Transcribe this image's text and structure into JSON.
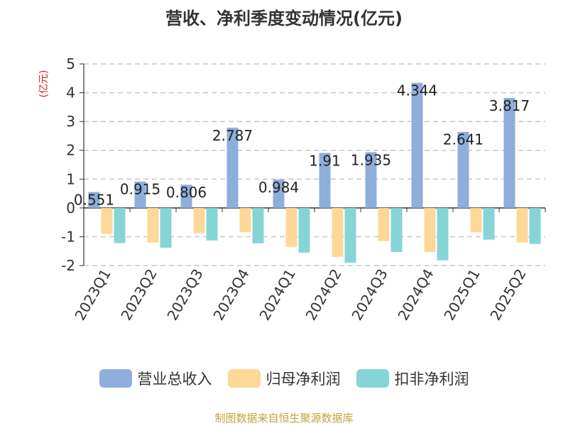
{
  "title": "营收、净利季度变动情况(亿元)",
  "source": "制图数据来自恒生聚源数据库",
  "chart_data": {
    "type": "bar",
    "title": "营收、净利季度变动情况(亿元)",
    "ylabel": "(亿元)",
    "xlabel": "",
    "ylim": [
      -2,
      5
    ],
    "yticks": [
      -2,
      -1,
      0,
      1,
      2,
      3,
      4,
      5
    ],
    "grid": true,
    "legend_position": "bottom",
    "categories": [
      "2023Q1",
      "2023Q2",
      "2023Q3",
      "2023Q4",
      "2024Q1",
      "2024Q2",
      "2024Q3",
      "2024Q4",
      "2025Q1",
      "2025Q2"
    ],
    "series": [
      {
        "name": "营业总收入",
        "color": "#8eaedb",
        "values": [
          0.551,
          0.915,
          0.806,
          2.787,
          0.984,
          1.91,
          1.935,
          4.344,
          2.641,
          3.817
        ],
        "labels": [
          "0.551",
          "0.915",
          "0.806",
          "2.787",
          "0.984",
          "1.91",
          "1.935",
          "4.344",
          "2.641",
          "3.817"
        ]
      },
      {
        "name": "归母净利润",
        "color": "#fed898",
        "values": [
          -0.9,
          -1.2,
          -0.88,
          -0.85,
          -1.35,
          -1.7,
          -1.15,
          -1.53,
          -0.85,
          -1.2
        ]
      },
      {
        "name": "扣非净利润",
        "color": "#86d5d6",
        "values": [
          -1.22,
          -1.38,
          -1.13,
          -1.23,
          -1.55,
          -1.9,
          -1.53,
          -1.82,
          -1.1,
          -1.25
        ]
      }
    ]
  }
}
